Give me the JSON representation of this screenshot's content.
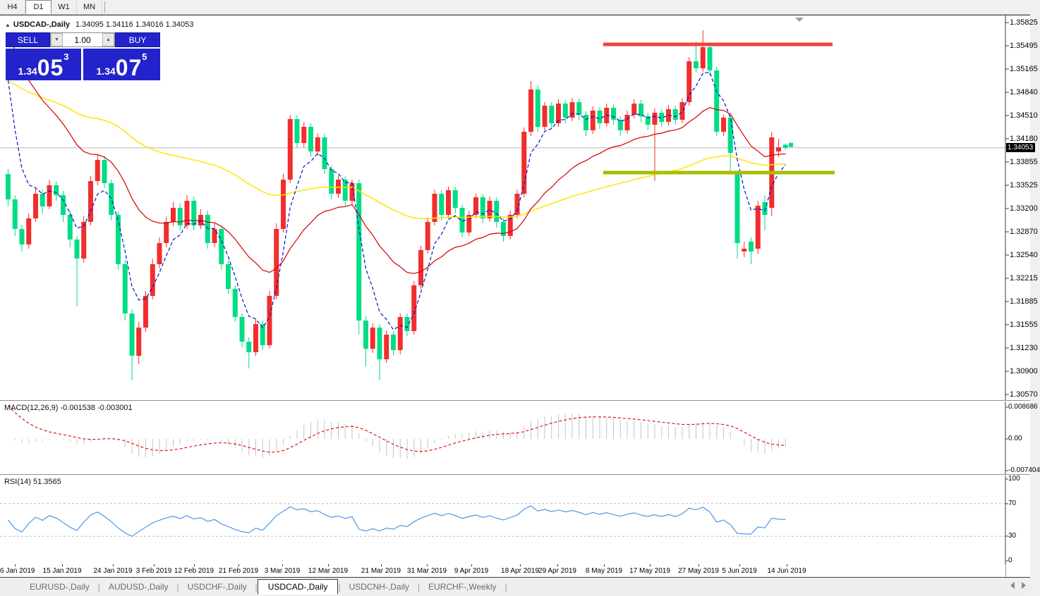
{
  "toolbar": {
    "buttons": [
      "H4",
      "D1",
      "W1",
      "MN"
    ],
    "active": "D1"
  },
  "header": {
    "collapse_icon": "▲",
    "symbol": "USDCAD-,Daily",
    "ohlc_text": "1.34095 1.34116 1.34016 1.34053"
  },
  "trade_panel": {
    "sell_label": "SELL",
    "buy_label": "BUY",
    "volume": "1.00",
    "spin_up_icon": "▲",
    "spin_down_icon": "▼",
    "sell_price": {
      "base": "1.34",
      "big": "05",
      "sup": "3"
    },
    "buy_price": {
      "base": "1.34",
      "big": "07",
      "sup": "5"
    }
  },
  "colors": {
    "bull_candle": "#f22d2d",
    "bear_candle": "#00dd85",
    "ema_fast": "#0018c8",
    "ema_mid": "#d40000",
    "ema_slow": "#ffe400",
    "resistance_line": "#f54040",
    "support_line": "#a6bd00",
    "current_price_line": "#b8b8b8",
    "macd_hist": "#c4c4c4",
    "macd_signal": "#e00000",
    "rsi_line": "#3e8ede",
    "panel_blue": "#2323cb"
  },
  "price_axis": {
    "labels": [
      "1.35825",
      "1.35495",
      "1.35165",
      "1.34840",
      "1.34510",
      "1.34180",
      "1.33855",
      "1.33525",
      "1.33200",
      "1.32870",
      "1.32540",
      "1.32215",
      "1.31885",
      "1.31555",
      "1.31230",
      "1.30900",
      "1.30570"
    ],
    "current": "1.34053"
  },
  "macd_panel": {
    "label": "MACD(12,26,9)",
    "value": "-0.001538",
    "signal_value": "-0.003001",
    "axis_labels": [
      "0.008686",
      "0.00",
      "-0.007404"
    ]
  },
  "rsi_panel": {
    "label": "RSI(14)",
    "value": "51.3565",
    "axis_labels": [
      "100",
      "70",
      "30",
      "0"
    ],
    "levels": [
      70,
      30
    ]
  },
  "tabs": {
    "items": [
      "EURUSD-,Daily",
      "AUDUSD-,Daily",
      "USDCHF-,Daily",
      "USDCAD-,Daily",
      "USDCNH-,Daily",
      "EURCHF-,Weekly"
    ],
    "active": "USDCAD-,Daily"
  },
  "chart_data": {
    "type": "candlestick",
    "symbol": "USDCAD-",
    "timeframe": "Daily",
    "ylim": [
      1.3057,
      1.35825
    ],
    "grid": false,
    "hlines": [
      {
        "name": "resistance",
        "price": 1.3552,
        "x_from": 855,
        "x_to": 1180
      },
      {
        "name": "support",
        "price": 1.337,
        "x_from": 855,
        "x_to": 1183
      }
    ],
    "current_price": 1.34053,
    "overlays": [
      {
        "name": "ema-fast-blue",
        "period": 5,
        "seed": 1.3585,
        "dashed": true
      },
      {
        "name": "ema-mid-red",
        "period": 22,
        "seed": 1.359,
        "dashed": false
      },
      {
        "name": "ema-slow-yellow",
        "period": 75,
        "seed": 1.3505,
        "dashed": false
      }
    ],
    "date_ticks": [
      {
        "x": 21,
        "label": "6 Jan 2019"
      },
      {
        "x": 88,
        "label": "15 Jan 2019"
      },
      {
        "x": 160,
        "label": "24 Jan 2019"
      },
      {
        "x": 218,
        "label": "3 Feb 2019"
      },
      {
        "x": 275,
        "label": "12 Feb 2019"
      },
      {
        "x": 338,
        "label": "21 Feb 2019"
      },
      {
        "x": 400,
        "label": "3 Mar 2019"
      },
      {
        "x": 465,
        "label": "12 Mar 2019"
      },
      {
        "x": 540,
        "label": "21 Mar 2019"
      },
      {
        "x": 605,
        "label": "31 Mar 2019"
      },
      {
        "x": 668,
        "label": "9 Apr 2019"
      },
      {
        "x": 737,
        "label": "18 Apr 2019"
      },
      {
        "x": 790,
        "label": "29 Apr 2019"
      },
      {
        "x": 856,
        "label": "8 May 2019"
      },
      {
        "x": 921,
        "label": "17 May 2019"
      },
      {
        "x": 990,
        "label": "27 May 2019"
      },
      {
        "x": 1048,
        "label": "5 Jun 2019"
      },
      {
        "x": 1115,
        "label": "14 Jun 2019"
      }
    ],
    "candles": [
      [
        1.3368,
        1.3375,
        1.3322,
        1.3332
      ],
      [
        1.3332,
        1.3338,
        1.328,
        1.329
      ],
      [
        1.329,
        1.3296,
        1.3258,
        1.3268
      ],
      [
        1.3268,
        1.3312,
        1.3262,
        1.3305
      ],
      [
        1.3305,
        1.3348,
        1.33,
        1.334
      ],
      [
        1.334,
        1.3346,
        1.3312,
        1.3322
      ],
      [
        1.3322,
        1.336,
        1.3318,
        1.3352
      ],
      [
        1.3352,
        1.3358,
        1.333,
        1.3338
      ],
      [
        1.3338,
        1.3344,
        1.33,
        1.331
      ],
      [
        1.331,
        1.3316,
        1.3264,
        1.3275
      ],
      [
        1.3275,
        1.328,
        1.318,
        1.3248
      ],
      [
        1.3248,
        1.3308,
        1.3242,
        1.33
      ],
      [
        1.33,
        1.3365,
        1.3295,
        1.3358
      ],
      [
        1.3358,
        1.3396,
        1.3352,
        1.3388
      ],
      [
        1.3388,
        1.3394,
        1.3348,
        1.3355
      ],
      [
        1.3355,
        1.336,
        1.3302,
        1.331
      ],
      [
        1.331,
        1.3315,
        1.3232,
        1.324
      ],
      [
        1.324,
        1.3246,
        1.316,
        1.317
      ],
      [
        1.317,
        1.3176,
        1.3075,
        1.311
      ],
      [
        1.311,
        1.3158,
        1.3098,
        1.315
      ],
      [
        1.315,
        1.3202,
        1.3144,
        1.3195
      ],
      [
        1.3195,
        1.3248,
        1.319,
        1.324
      ],
      [
        1.324,
        1.3278,
        1.3234,
        1.327
      ],
      [
        1.327,
        1.3308,
        1.3264,
        1.33
      ],
      [
        1.33,
        1.3328,
        1.3294,
        1.332
      ],
      [
        1.332,
        1.3326,
        1.3288,
        1.3295
      ],
      [
        1.3295,
        1.3338,
        1.329,
        1.333
      ],
      [
        1.333,
        1.3336,
        1.3288,
        1.3295
      ],
      [
        1.3295,
        1.3318,
        1.329,
        1.331
      ],
      [
        1.331,
        1.3316,
        1.3262,
        1.327
      ],
      [
        1.327,
        1.3298,
        1.3264,
        1.329
      ],
      [
        1.329,
        1.3295,
        1.3232,
        1.324
      ],
      [
        1.324,
        1.3246,
        1.3198,
        1.3205
      ],
      [
        1.3205,
        1.321,
        1.3158,
        1.3165
      ],
      [
        1.3165,
        1.317,
        1.3122,
        1.313
      ],
      [
        1.313,
        1.3136,
        1.3092,
        1.3115
      ],
      [
        1.3115,
        1.3162,
        1.311,
        1.3155
      ],
      [
        1.3155,
        1.316,
        1.3118,
        1.3125
      ],
      [
        1.3125,
        1.3202,
        1.312,
        1.3195
      ],
      [
        1.3195,
        1.3298,
        1.319,
        1.329
      ],
      [
        1.329,
        1.3368,
        1.3285,
        1.336
      ],
      [
        1.336,
        1.3452,
        1.3355,
        1.3446
      ],
      [
        1.3446,
        1.3452,
        1.3405,
        1.3412
      ],
      [
        1.3412,
        1.3442,
        1.3406,
        1.3435
      ],
      [
        1.3435,
        1.344,
        1.3392,
        1.34
      ],
      [
        1.34,
        1.3426,
        1.3394,
        1.342
      ],
      [
        1.342,
        1.3425,
        1.3368,
        1.3375
      ],
      [
        1.3375,
        1.338,
        1.3332,
        1.334
      ],
      [
        1.334,
        1.3366,
        1.3334,
        1.336
      ],
      [
        1.336,
        1.3365,
        1.3322,
        1.333
      ],
      [
        1.333,
        1.336,
        1.3324,
        1.3355
      ],
      [
        1.3355,
        1.336,
        1.314,
        1.316
      ],
      [
        1.316,
        1.3166,
        1.3095,
        1.312
      ],
      [
        1.312,
        1.3156,
        1.3114,
        1.315
      ],
      [
        1.315,
        1.3155,
        1.3075,
        1.3105
      ],
      [
        1.3105,
        1.3146,
        1.31,
        1.314
      ],
      [
        1.314,
        1.3145,
        1.311,
        1.3118
      ],
      [
        1.3118,
        1.317,
        1.3112,
        1.3165
      ],
      [
        1.3165,
        1.317,
        1.3138,
        1.3145
      ],
      [
        1.3145,
        1.3216,
        1.314,
        1.321
      ],
      [
        1.321,
        1.3266,
        1.3205,
        1.326
      ],
      [
        1.326,
        1.3306,
        1.3255,
        1.33
      ],
      [
        1.33,
        1.3346,
        1.3295,
        1.334
      ],
      [
        1.334,
        1.3345,
        1.3302,
        1.331
      ],
      [
        1.331,
        1.335,
        1.3305,
        1.3345
      ],
      [
        1.3345,
        1.335,
        1.3312,
        1.332
      ],
      [
        1.332,
        1.3325,
        1.3278,
        1.3285
      ],
      [
        1.3285,
        1.3316,
        1.328,
        1.331
      ],
      [
        1.331,
        1.334,
        1.3305,
        1.3335
      ],
      [
        1.3335,
        1.334,
        1.3298,
        1.3305
      ],
      [
        1.3305,
        1.3336,
        1.33,
        1.333
      ],
      [
        1.333,
        1.3335,
        1.3292,
        1.33
      ],
      [
        1.33,
        1.3305,
        1.3272,
        1.328
      ],
      [
        1.328,
        1.3316,
        1.3275,
        1.331
      ],
      [
        1.331,
        1.3346,
        1.3305,
        1.334
      ],
      [
        1.334,
        1.3434,
        1.3335,
        1.3428
      ],
      [
        1.3428,
        1.35,
        1.3422,
        1.3488
      ],
      [
        1.3488,
        1.3494,
        1.3428,
        1.3435
      ],
      [
        1.3435,
        1.347,
        1.343,
        1.3465
      ],
      [
        1.3465,
        1.347,
        1.3432,
        1.344
      ],
      [
        1.344,
        1.3474,
        1.3435,
        1.3468
      ],
      [
        1.3468,
        1.3473,
        1.344,
        1.3448
      ],
      [
        1.3448,
        1.3476,
        1.3443,
        1.347
      ],
      [
        1.347,
        1.3475,
        1.3444,
        1.3452
      ],
      [
        1.3452,
        1.3457,
        1.3422,
        1.343
      ],
      [
        1.343,
        1.3464,
        1.3425,
        1.3458
      ],
      [
        1.3458,
        1.3463,
        1.3432,
        1.344
      ],
      [
        1.344,
        1.3468,
        1.3435,
        1.3462
      ],
      [
        1.3462,
        1.3467,
        1.3438,
        1.3445
      ],
      [
        1.3445,
        1.345,
        1.3422,
        1.343
      ],
      [
        1.343,
        1.3458,
        1.3425,
        1.3452
      ],
      [
        1.3452,
        1.3474,
        1.3447,
        1.3468
      ],
      [
        1.3468,
        1.3473,
        1.3442,
        1.345
      ],
      [
        1.345,
        1.3455,
        1.343,
        1.3438
      ],
      [
        1.3438,
        1.3461,
        1.3358,
        1.3455
      ],
      [
        1.3455,
        1.346,
        1.3435,
        1.3442
      ],
      [
        1.3442,
        1.3466,
        1.3437,
        1.346
      ],
      [
        1.346,
        1.3465,
        1.3438,
        1.3445
      ],
      [
        1.3445,
        1.3476,
        1.344,
        1.347
      ],
      [
        1.347,
        1.3534,
        1.3465,
        1.3528
      ],
      [
        1.3528,
        1.3556,
        1.3512,
        1.3518
      ],
      [
        1.3518,
        1.3572,
        1.3513,
        1.3548
      ],
      [
        1.3548,
        1.3553,
        1.3508,
        1.3515
      ],
      [
        1.3515,
        1.352,
        1.3422,
        1.3428
      ],
      [
        1.3428,
        1.3452,
        1.3422,
        1.3448
      ],
      [
        1.3448,
        1.3453,
        1.3372,
        1.3398
      ],
      [
        1.3368,
        1.3372,
        1.3248,
        1.327
      ],
      [
        1.3258,
        1.3272,
        1.325,
        1.3262
      ],
      [
        1.3272,
        1.3278,
        1.324,
        1.3258
      ],
      [
        1.3262,
        1.333,
        1.3255,
        1.3323
      ],
      [
        1.3328,
        1.3338,
        1.3288,
        1.331
      ],
      [
        1.332,
        1.3428,
        1.3308,
        1.342
      ],
      [
        1.34,
        1.3418,
        1.3392,
        1.3406
      ],
      [
        1.34095,
        1.34116,
        1.34016,
        1.34053
      ]
    ]
  }
}
